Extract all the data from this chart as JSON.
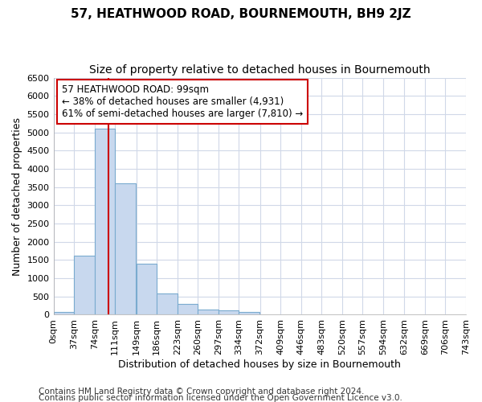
{
  "title": "57, HEATHWOOD ROAD, BOURNEMOUTH, BH9 2JZ",
  "subtitle": "Size of property relative to detached houses in Bournemouth",
  "xlabel": "Distribution of detached houses by size in Bournemouth",
  "ylabel": "Number of detached properties",
  "footer1": "Contains HM Land Registry data © Crown copyright and database right 2024.",
  "footer2": "Contains public sector information licensed under the Open Government Licence v3.0.",
  "bin_edges": [
    0,
    37,
    74,
    111,
    149,
    186,
    223,
    260,
    297,
    334,
    372,
    409,
    446,
    483,
    520,
    557,
    594,
    632,
    669,
    706,
    743
  ],
  "bar_heights": [
    75,
    1620,
    5100,
    3600,
    1400,
    580,
    300,
    150,
    130,
    75,
    0,
    0,
    0,
    0,
    0,
    0,
    0,
    0,
    0,
    0
  ],
  "bar_color": "#c8d8ee",
  "bar_edge_color": "#7aabcf",
  "property_size": 99,
  "property_line_color": "#cc0000",
  "annotation_line1": "57 HEATHWOOD ROAD: 99sqm",
  "annotation_line2": "← 38% of detached houses are smaller (4,931)",
  "annotation_line3": "61% of semi-detached houses are larger (7,810) →",
  "annotation_box_facecolor": "white",
  "annotation_box_edgecolor": "#cc0000",
  "ylim": [
    0,
    6500
  ],
  "yticks": [
    0,
    500,
    1000,
    1500,
    2000,
    2500,
    3000,
    3500,
    4000,
    4500,
    5000,
    5500,
    6000,
    6500
  ],
  "bg_color": "#ffffff",
  "plot_bg_color": "#ffffff",
  "grid_color": "#d0d8e8",
  "title_fontsize": 11,
  "subtitle_fontsize": 10,
  "tick_fontsize": 8,
  "label_fontsize": 9,
  "footer_fontsize": 7.5,
  "annotation_fontsize": 8.5
}
